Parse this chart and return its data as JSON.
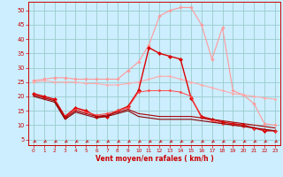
{
  "x": [
    0,
    1,
    2,
    3,
    4,
    5,
    6,
    7,
    8,
    9,
    10,
    11,
    12,
    13,
    14,
    15,
    16,
    17,
    18,
    19,
    20,
    21,
    22,
    23
  ],
  "series": [
    {
      "name": "light_pink_spiky",
      "color": "#ff9999",
      "linewidth": 0.8,
      "marker": "D",
      "markersize": 1.8,
      "y": [
        25.5,
        26.0,
        26.5,
        26.5,
        26.0,
        26.0,
        26.0,
        26.0,
        26.0,
        29.0,
        32.0,
        38.0,
        48.0,
        50.0,
        51.0,
        51.0,
        45.0,
        33.0,
        44.0,
        22.0,
        20.5,
        17.5,
        10.5,
        10.0
      ]
    },
    {
      "name": "light_pink_smooth",
      "color": "#ffaaaa",
      "linewidth": 0.8,
      "marker": "D",
      "markersize": 1.5,
      "y": [
        25.0,
        25.5,
        25.0,
        25.0,
        25.0,
        24.5,
        24.5,
        24.0,
        24.0,
        24.5,
        25.0,
        26.0,
        27.0,
        27.0,
        26.0,
        25.0,
        24.0,
        23.0,
        22.0,
        21.0,
        20.5,
        20.0,
        19.5,
        19.0
      ]
    },
    {
      "name": "dark_red_spiky",
      "color": "#dd0000",
      "linewidth": 1.0,
      "marker": "D",
      "markersize": 2.2,
      "y": [
        21.0,
        20.0,
        19.0,
        13.0,
        16.0,
        15.0,
        13.0,
        13.0,
        15.0,
        16.5,
        22.0,
        37.0,
        35.0,
        34.0,
        33.0,
        19.5,
        13.0,
        12.0,
        11.0,
        10.5,
        10.0,
        9.0,
        8.0,
        8.0
      ]
    },
    {
      "name": "red_medium",
      "color": "#ff4444",
      "linewidth": 0.7,
      "marker": "D",
      "markersize": 1.5,
      "y": [
        20.5,
        19.5,
        18.5,
        12.5,
        15.5,
        14.5,
        13.5,
        14.0,
        15.0,
        16.0,
        21.5,
        22.0,
        22.0,
        22.0,
        21.5,
        20.0,
        12.5,
        11.5,
        10.5,
        10.0,
        9.5,
        9.0,
        8.5,
        8.0
      ]
    },
    {
      "name": "dark_line1",
      "color": "#aa0000",
      "linewidth": 0.8,
      "marker": null,
      "markersize": 0,
      "y": [
        20.5,
        19.5,
        18.5,
        12.5,
        15.0,
        14.0,
        13.0,
        13.5,
        14.5,
        15.5,
        14.0,
        13.5,
        13.0,
        13.0,
        13.0,
        13.0,
        12.5,
        12.0,
        11.5,
        11.0,
        10.5,
        10.0,
        9.5,
        9.0
      ]
    },
    {
      "name": "dark_line2",
      "color": "#880000",
      "linewidth": 0.8,
      "marker": null,
      "markersize": 0,
      "y": [
        20.0,
        19.0,
        18.0,
        12.0,
        14.5,
        13.5,
        12.5,
        13.0,
        14.0,
        15.0,
        13.0,
        12.5,
        12.0,
        12.0,
        12.0,
        12.0,
        11.5,
        11.0,
        10.5,
        10.0,
        9.5,
        9.0,
        8.5,
        8.0
      ]
    }
  ],
  "arrow_color": "#cc0000",
  "background_color": "#cceeff",
  "grid_color": "#99cccc",
  "ylabel_ticks": [
    5,
    10,
    15,
    20,
    25,
    30,
    35,
    40,
    45,
    50
  ],
  "ylim": [
    3,
    53
  ],
  "xlim": [
    -0.5,
    23.5
  ],
  "xlabel": "Vent moyen/en rafales ( km/h )",
  "xlabel_color": "#cc0000",
  "tick_color": "#cc0000"
}
